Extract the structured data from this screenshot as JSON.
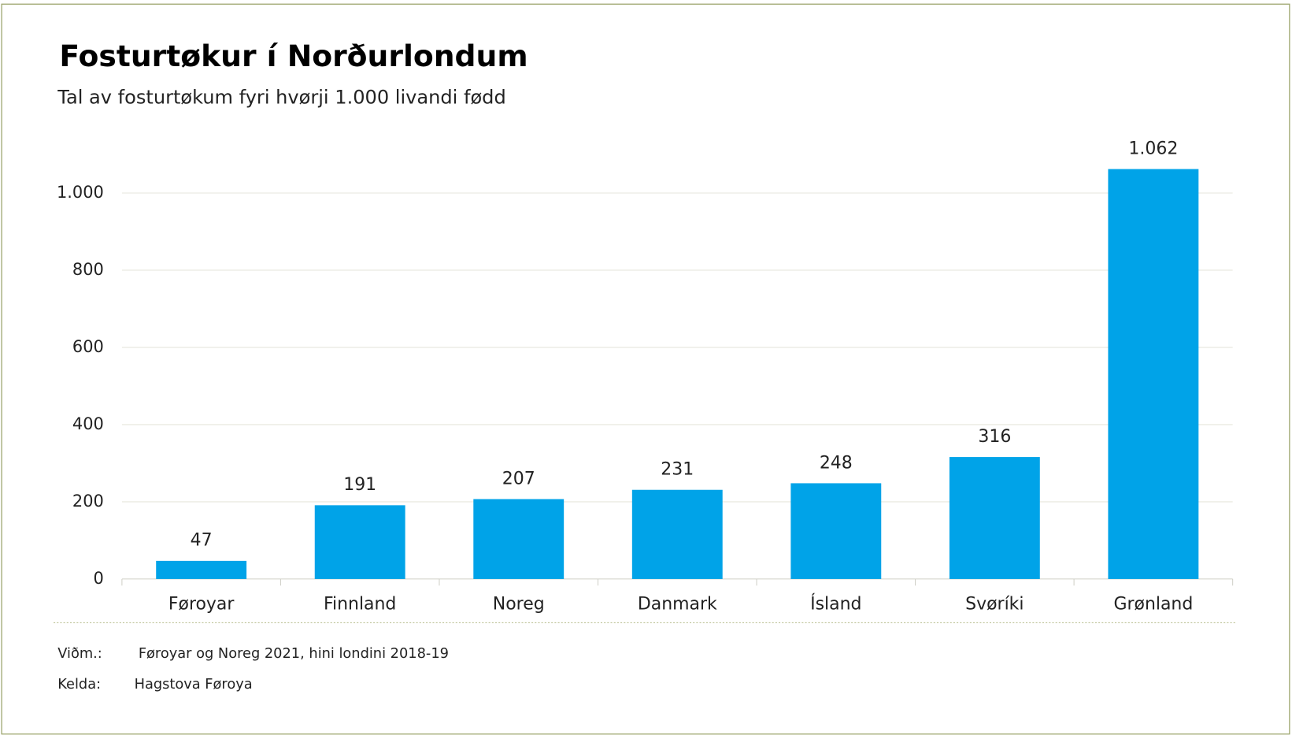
{
  "chart_data": {
    "type": "bar",
    "title": "Fosturtøkur í Norðurlondum",
    "subtitle": "Tal av fosturtøkum fyri hvørji 1.000 livandi fødd",
    "categories": [
      "Føroyar",
      "Finnland",
      "Noreg",
      "Danmark",
      "Ísland",
      "Svøríki",
      "Grønland"
    ],
    "values": [
      47,
      191,
      207,
      231,
      248,
      316,
      1062
    ],
    "value_labels": [
      "47",
      "191",
      "207",
      "231",
      "248",
      "316",
      "1.062"
    ],
    "color": "#00a3e8",
    "ylim": [
      0,
      1100
    ],
    "yticks": [
      0,
      200,
      400,
      600,
      800,
      {
        "value": 1000,
        "label": "1.000"
      }
    ],
    "grid": true,
    "notes": [
      {
        "label": "Viðm.:",
        "text": "Føroyar og Noreg 2021, hini londini 2018-19"
      },
      {
        "label": "Kelda:",
        "text": "Hagstova Føroya"
      }
    ]
  }
}
